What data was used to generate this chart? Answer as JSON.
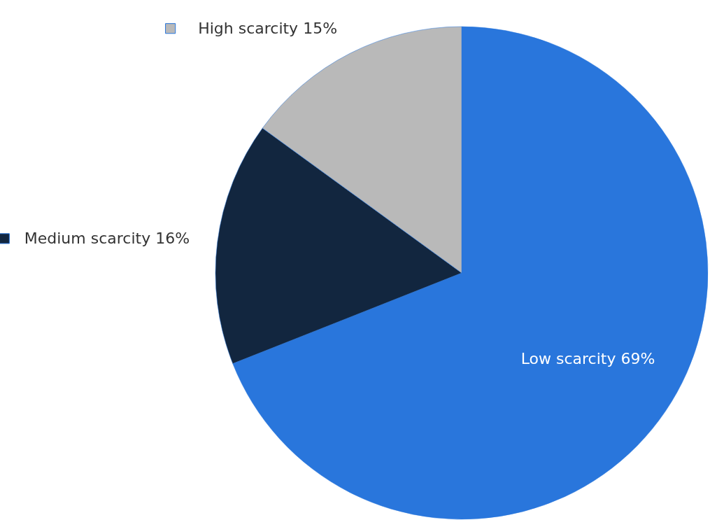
{
  "chart_data": {
    "type": "pie",
    "categories": [
      "Low scarcity",
      "Medium scarcity",
      "High scarcity"
    ],
    "values": [
      69,
      16,
      15
    ],
    "value_labels": [
      "69%",
      "16%",
      "15%"
    ],
    "colors": [
      "#2976dc",
      "#12263f",
      "#b9b9b9"
    ],
    "legend": "left"
  }
}
